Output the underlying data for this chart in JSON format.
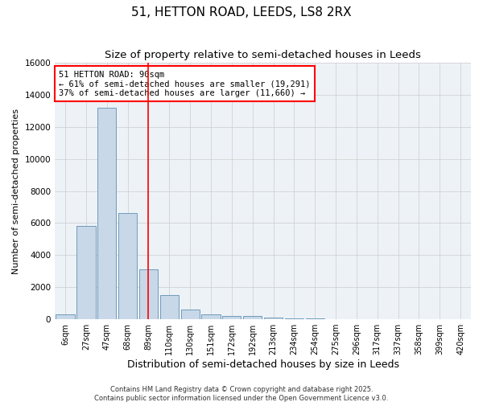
{
  "title": "51, HETTON ROAD, LEEDS, LS8 2RX",
  "subtitle": "Size of property relative to semi-detached houses in Leeds",
  "xlabel": "Distribution of semi-detached houses by size in Leeds",
  "ylabel": "Number of semi-detached properties",
  "footnote1": "Contains HM Land Registry data © Crown copyright and database right 2025.",
  "footnote2": "Contains public sector information licensed under the Open Government Licence v3.0.",
  "bin_labels": [
    "6sqm",
    "27sqm",
    "47sqm",
    "68sqm",
    "89sqm",
    "110sqm",
    "130sqm",
    "151sqm",
    "172sqm",
    "192sqm",
    "213sqm",
    "234sqm",
    "254sqm",
    "275sqm",
    "296sqm",
    "317sqm",
    "337sqm",
    "358sqm",
    "399sqm",
    "420sqm"
  ],
  "bar_values": [
    300,
    5800,
    13200,
    6600,
    3100,
    1500,
    600,
    300,
    200,
    200,
    100,
    50,
    50,
    0,
    0,
    0,
    0,
    0,
    0,
    0
  ],
  "bar_color": "#c8d8e8",
  "bar_edge_color": "#6090b0",
  "grid_color": "#cccccc",
  "background_color": "#edf2f7",
  "red_line_bin": 4,
  "annotation_line1": "51 HETTON ROAD: 90sqm",
  "annotation_line2": "← 61% of semi-detached houses are smaller (19,291)",
  "annotation_line3": "37% of semi-detached houses are larger (11,660) →",
  "ylim": [
    0,
    16000
  ],
  "yticks": [
    0,
    2000,
    4000,
    6000,
    8000,
    10000,
    12000,
    14000,
    16000
  ],
  "title_fontsize": 11,
  "subtitle_fontsize": 9.5,
  "annotation_fontsize": 7.5,
  "tick_fontsize": 7,
  "ylabel_fontsize": 8,
  "xlabel_fontsize": 9
}
